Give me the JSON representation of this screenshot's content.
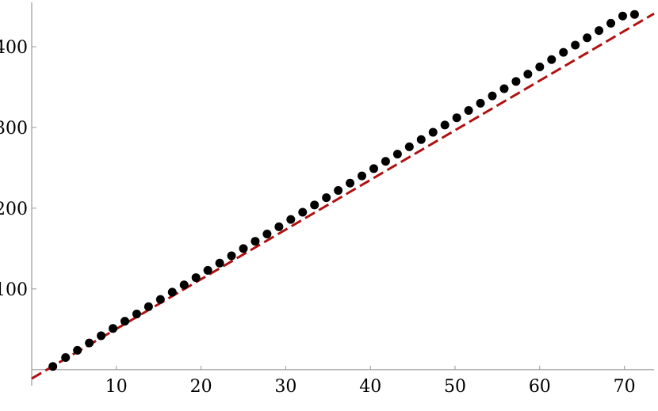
{
  "chart_data": {
    "type": "scatter",
    "title": "",
    "xlabel": "",
    "ylabel": "",
    "xlim": [
      0,
      73.5
    ],
    "ylim": [
      -10,
      450
    ],
    "x_ticks": [
      10,
      20,
      30,
      40,
      50,
      60,
      70
    ],
    "y_ticks": [
      100,
      200,
      300,
      400
    ],
    "x_tick_labels": [
      "10",
      "20",
      "30",
      "40",
      "50",
      "60",
      "70"
    ],
    "y_tick_labels": [
      "100",
      "200",
      "300",
      "400"
    ],
    "grid": false,
    "series": [
      {
        "type": "scatter",
        "color": "#000000",
        "x": [
          2.5,
          4,
          5.4,
          6.8,
          8.2,
          9.6,
          11,
          12.4,
          13.8,
          15.2,
          16.6,
          18,
          19.4,
          20.8,
          22.2,
          23.6,
          25,
          26.4,
          27.8,
          29.2,
          30.6,
          32,
          33.4,
          34.8,
          36.2,
          37.6,
          39,
          40.4,
          41.8,
          43.2,
          44.6,
          46,
          47.4,
          48.8,
          50.2,
          51.6,
          53,
          54.4,
          55.8,
          57.2,
          58.6,
          60,
          61.4,
          62.8,
          64.2,
          65.6,
          67,
          68.4,
          69.8,
          71.2
        ],
        "y": [
          4,
          15,
          24,
          33,
          42,
          51,
          60,
          69,
          78,
          87,
          96,
          105,
          114,
          123,
          132,
          141,
          150,
          159,
          168,
          177,
          186,
          195,
          204,
          213,
          222,
          231,
          240,
          249,
          258,
          267,
          276,
          285,
          294,
          303,
          312,
          321,
          330,
          339,
          348,
          357,
          366,
          375,
          384,
          393,
          402,
          411,
          420,
          429,
          438,
          440
        ]
      },
      {
        "type": "line",
        "style": "dashed",
        "color": "#b01010",
        "x": [
          0,
          73.5
        ],
        "y": [
          -11,
          441
        ]
      }
    ]
  }
}
